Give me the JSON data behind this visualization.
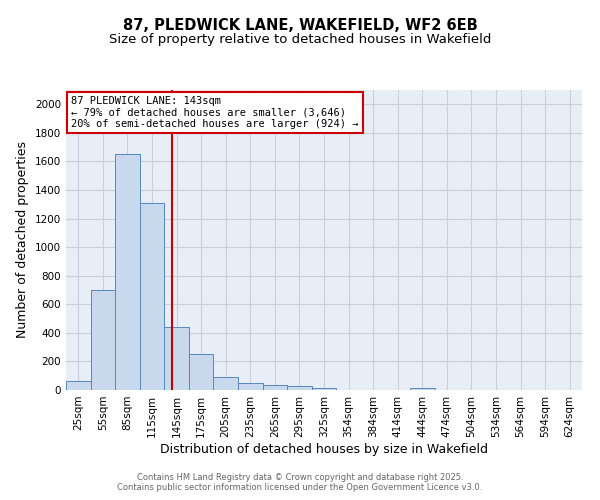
{
  "title_line1": "87, PLEDWICK LANE, WAKEFIELD, WF2 6EB",
  "title_line2": "Size of property relative to detached houses in Wakefield",
  "xlabel": "Distribution of detached houses by size in Wakefield",
  "ylabel": "Number of detached properties",
  "categories": [
    "25sqm",
    "55sqm",
    "85sqm",
    "115sqm",
    "145sqm",
    "175sqm",
    "205sqm",
    "235sqm",
    "265sqm",
    "295sqm",
    "325sqm",
    "354sqm",
    "384sqm",
    "414sqm",
    "444sqm",
    "474sqm",
    "504sqm",
    "534sqm",
    "564sqm",
    "594sqm",
    "624sqm"
  ],
  "values": [
    65,
    700,
    1650,
    1310,
    440,
    250,
    90,
    50,
    35,
    25,
    15,
    0,
    0,
    0,
    15,
    0,
    0,
    0,
    0,
    0,
    0
  ],
  "bar_color": "#c8d9ee",
  "bar_edge_color": "#5a85c0",
  "bar_width": 1.0,
  "red_line_x": 3.83,
  "red_line_color": "#cc0000",
  "annotation_text": "87 PLEDWICK LANE: 143sqm\n← 79% of detached houses are smaller (3,646)\n20% of semi-detached houses are larger (924) →",
  "annotation_box_color": "#ffffff",
  "annotation_box_edge": "#cc0000",
  "ylim": [
    0,
    2100
  ],
  "yticks": [
    0,
    200,
    400,
    600,
    800,
    1000,
    1200,
    1400,
    1600,
    1800,
    2000
  ],
  "grid_color": "#c8d0dc",
  "background_color": "#e8eef8",
  "footer_text": "Contains HM Land Registry data © Crown copyright and database right 2025.\nContains public sector information licensed under the Open Government Licence v3.0.",
  "title_fontsize": 10.5,
  "subtitle_fontsize": 9.5,
  "xlabel_fontsize": 9,
  "ylabel_fontsize": 9,
  "tick_fontsize": 7.5,
  "annotation_fontsize": 7.5,
  "footer_fontsize": 6.0
}
